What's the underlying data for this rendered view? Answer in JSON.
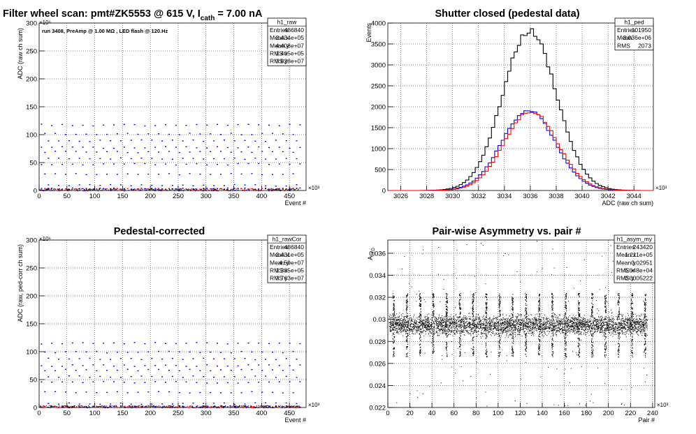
{
  "chart_data": [
    {
      "type": "scatter",
      "panel": "raw",
      "title": "Filter wheel scan: pmt#ZK5553 @   615 V, I",
      "title_sub": "cath",
      "title_tail": "= 7.00 nA",
      "annotation": "run 3408, PreAmp @ 1.00 MΩ , LED flash @  120.Hz",
      "xlabel": "Event #",
      "ylabel": "ADC (raw ch sum)",
      "x_multiplier": "×10³",
      "y_multiplier": "×10⁶",
      "xlim": [
        0,
        480
      ],
      "ylim": [
        0,
        300
      ],
      "x_ticks": [
        "0",
        "50",
        "100",
        "150",
        "200",
        "250",
        "300",
        "350",
        "400",
        "450"
      ],
      "y_ticks": [
        "0",
        "50",
        "100",
        "150",
        "200",
        "250",
        "300"
      ],
      "grid": true,
      "stats": {
        "name": "h1_raw",
        "rows": [
          [
            "Entries",
            "486840"
          ],
          [
            "Mean x",
            "2.434e+05"
          ],
          [
            "Mean y",
            "4.408e+07"
          ],
          [
            "RMS x",
            "1.405e+05"
          ],
          [
            "RMS y",
            "3.828e+07"
          ]
        ]
      },
      "level_bands": [
        4,
        10,
        30,
        48,
        58,
        70,
        78,
        90,
        102,
        118
      ],
      "series": [
        {
          "color": "#0000ff"
        },
        {
          "color": "#ff0000"
        },
        {
          "color": "#000000"
        }
      ]
    },
    {
      "type": "line",
      "panel": "ped",
      "title": "Shutter closed (pedestal data)",
      "xlabel": "ADC (raw ch sum)",
      "ylabel": "Events",
      "x_multiplier": "×10³",
      "xlim": [
        3025,
        3045.5
      ],
      "ylim": [
        0,
        4000
      ],
      "x_ticks": [
        "3026",
        "3028",
        "3030",
        "3032",
        "3034",
        "3036",
        "3038",
        "3040",
        "3042",
        "3044"
      ],
      "y_ticks": [
        "0",
        "500",
        "1000",
        "1500",
        "2000",
        "2500",
        "3000",
        "3500",
        "4000"
      ],
      "grid": true,
      "stats": {
        "name": "h1_ped",
        "rows": [
          [
            "Entries",
            "101950"
          ],
          [
            "Mean",
            "3.036e+06"
          ],
          [
            "RMS",
            "2073"
          ]
        ]
      },
      "series": [
        {
          "color": "#000000",
          "mean": 3035.95,
          "sigma": 2.07,
          "peak": 3810
        },
        {
          "color": "#0000ff",
          "mean": 3035.85,
          "sigma": 2.05,
          "peak": 1920
        },
        {
          "color": "#ff0000",
          "mean": 3036.05,
          "sigma": 2.05,
          "peak": 1890
        }
      ]
    },
    {
      "type": "scatter",
      "panel": "rawCor",
      "title": "Pedestal-corrected",
      "xlabel": "Event #",
      "ylabel": "ADC (raw, ped-corr ch sum)",
      "x_multiplier": "×10³",
      "y_multiplier": "×10⁶",
      "xlim": [
        0,
        480
      ],
      "ylim": [
        0,
        300
      ],
      "x_ticks": [
        "0",
        "50",
        "100",
        "150",
        "200",
        "250",
        "300",
        "350",
        "400",
        "450"
      ],
      "y_ticks": [
        "0",
        "50",
        "100",
        "150",
        "200",
        "250",
        "300"
      ],
      "grid": true,
      "stats": {
        "name": "h1_rawCor",
        "rows": [
          [
            "Entries",
            "486840"
          ],
          [
            "Mean x",
            "2.431e+05"
          ],
          [
            "Mean y",
            "4.59e+07"
          ],
          [
            "RMS x",
            "1.385e+05"
          ],
          [
            "RMS y",
            "3.763e+07"
          ]
        ]
      },
      "level_bands": [
        2,
        8,
        28,
        46,
        56,
        68,
        76,
        88,
        100,
        116
      ],
      "series": [
        {
          "color": "#0000ff"
        },
        {
          "color": "#ff0000"
        },
        {
          "color": "#000000"
        }
      ]
    },
    {
      "type": "scatter",
      "panel": "asym",
      "title": "Pair-wise Asymmetry vs. pair #",
      "xlabel": "Pair #",
      "ylabel": "A",
      "ylabel_sub": "LED",
      "x_multiplier": "×10³",
      "xlim": [
        0,
        242
      ],
      "ylim": [
        0.022,
        0.0372
      ],
      "x_ticks": [
        "0",
        "20",
        "40",
        "60",
        "80",
        "100",
        "120",
        "140",
        "160",
        "180",
        "200",
        "220",
        "240"
      ],
      "y_ticks": [
        "0.022",
        "0.024",
        "0.026",
        "0.028",
        "0.03",
        "0.032",
        "0.034",
        "0.036"
      ],
      "grid": true,
      "stats": {
        "name": "h1_asym_my",
        "rows": [
          [
            "Entries",
            "243420"
          ],
          [
            "Mean x",
            "1.211e+05"
          ],
          [
            "Mean y",
            "0.02951"
          ],
          [
            "RMS x",
            "6.948e+04"
          ],
          [
            "RMS y",
            "0.0005222"
          ]
        ]
      },
      "band_center": 0.0295,
      "band_halfwidth": 0.0007,
      "spike_x": [
        5,
        17,
        29,
        41,
        53,
        65,
        77,
        89,
        101,
        113,
        125,
        137,
        149,
        161,
        173,
        185,
        197,
        209,
        221,
        233
      ],
      "series": [
        {
          "color": "#000000"
        }
      ]
    }
  ]
}
